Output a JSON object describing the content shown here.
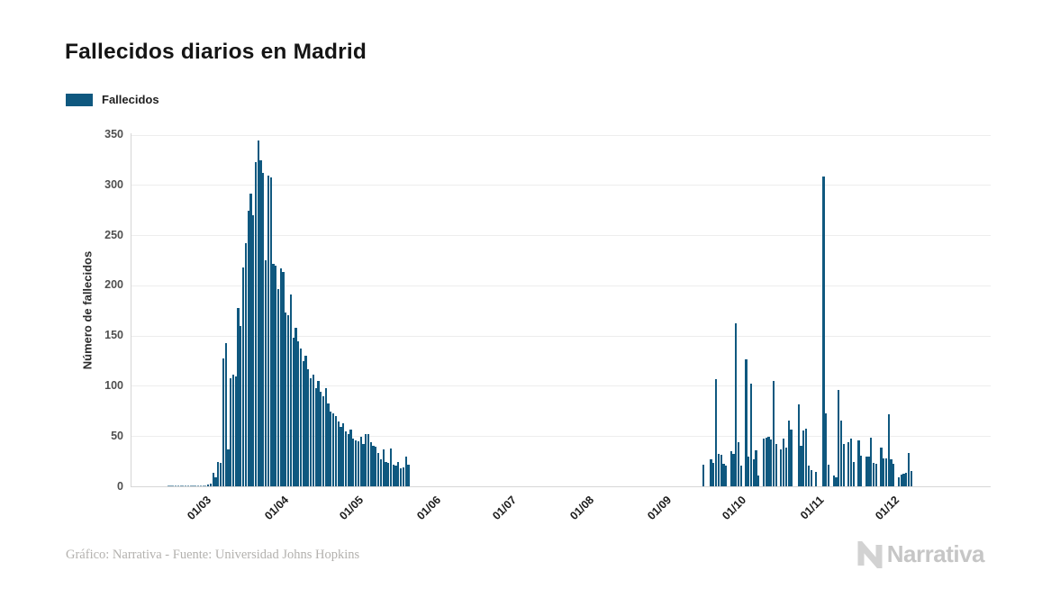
{
  "header": {
    "title": "Fallecidos diarios en Madrid"
  },
  "legend": {
    "label": "Fallecidos",
    "color": "#0f587f"
  },
  "footer": {
    "credit": "Gráfico: Narrativa - Fuente: Universidad Johns Hopkins",
    "brand": "Narrativa"
  },
  "chart_data": {
    "type": "bar",
    "title": "Fallecidos diarios en Madrid",
    "series_name": "Fallecidos",
    "ylabel": "Número de fallecidos",
    "xlabel": "",
    "ylim": [
      0,
      350
    ],
    "yticks": [
      0,
      50,
      100,
      150,
      200,
      250,
      300,
      350
    ],
    "grid": true,
    "legend_position": "top-left",
    "bar_color": "#0f587f",
    "x_start_date": "2020-02-01",
    "x_unit": "day",
    "month_ticks": [
      {
        "label": "01/03",
        "day_index": 29
      },
      {
        "label": "01/04",
        "day_index": 60
      },
      {
        "label": "01/05",
        "day_index": 90
      },
      {
        "label": "01/06",
        "day_index": 121
      },
      {
        "label": "01/07",
        "day_index": 151
      },
      {
        "label": "01/08",
        "day_index": 182
      },
      {
        "label": "01/09",
        "day_index": 213
      },
      {
        "label": "01/10",
        "day_index": 243
      },
      {
        "label": "01/11",
        "day_index": 274
      },
      {
        "label": "01/12",
        "day_index": 304
      }
    ],
    "values": [
      0,
      0,
      0,
      0,
      0,
      0,
      0,
      0,
      0,
      0,
      0,
      0,
      0,
      0,
      1,
      1,
      1,
      1,
      1,
      1,
      1,
      1,
      1,
      1,
      1,
      1,
      1,
      1,
      1,
      1,
      2,
      3,
      14,
      9,
      25,
      24,
      128,
      143,
      37,
      108,
      112,
      110,
      178,
      160,
      218,
      242,
      275,
      292,
      270,
      323,
      345,
      325,
      312,
      225,
      310,
      308,
      222,
      220,
      197,
      217,
      214,
      173,
      171,
      191,
      148,
      158,
      145,
      138,
      125,
      130,
      117,
      108,
      112,
      98,
      105,
      95,
      90,
      98,
      83,
      75,
      73,
      70,
      65,
      60,
      63,
      55,
      52,
      57,
      48,
      46,
      45,
      50,
      43,
      52,
      52,
      44,
      41,
      40,
      34,
      27,
      37,
      25,
      24,
      38,
      22,
      21,
      25,
      18,
      19,
      30,
      22,
      0,
      0,
      0,
      0,
      0,
      0,
      0,
      0,
      0,
      0,
      0,
      0,
      0,
      0,
      0,
      0,
      0,
      0,
      0,
      0,
      0,
      0,
      0,
      0,
      0,
      0,
      0,
      0,
      0,
      0,
      0,
      0,
      0,
      0,
      0,
      0,
      0,
      0,
      0,
      0,
      0,
      0,
      0,
      0,
      0,
      0,
      0,
      0,
      0,
      0,
      0,
      0,
      0,
      0,
      0,
      0,
      0,
      0,
      0,
      0,
      0,
      0,
      0,
      0,
      0,
      0,
      0,
      0,
      0,
      0,
      0,
      0,
      0,
      0,
      0,
      0,
      0,
      0,
      0,
      0,
      0,
      0,
      0,
      0,
      0,
      0,
      0,
      0,
      0,
      0,
      0,
      0,
      0,
      0,
      0,
      0,
      0,
      0,
      0,
      0,
      0,
      0,
      0,
      0,
      0,
      0,
      0,
      0,
      0,
      0,
      0,
      0,
      0,
      0,
      0,
      0,
      0,
      22,
      0,
      0,
      27,
      24,
      107,
      33,
      32,
      23,
      21,
      0,
      35,
      33,
      163,
      44,
      21,
      0,
      127,
      30,
      103,
      27,
      36,
      11,
      0,
      48,
      49,
      50,
      47,
      105,
      43,
      0,
      37,
      48,
      39,
      66,
      57,
      0,
      0,
      82,
      41,
      56,
      58,
      21,
      17,
      0,
      15,
      0,
      0,
      309,
      73,
      22,
      0,
      11,
      9,
      96,
      66,
      43,
      0,
      44,
      48,
      25,
      0,
      46,
      31,
      0,
      30,
      30,
      49,
      24,
      23,
      0,
      39,
      28,
      28,
      72,
      27,
      23,
      0,
      9,
      12,
      13,
      14,
      34,
      16
    ]
  }
}
